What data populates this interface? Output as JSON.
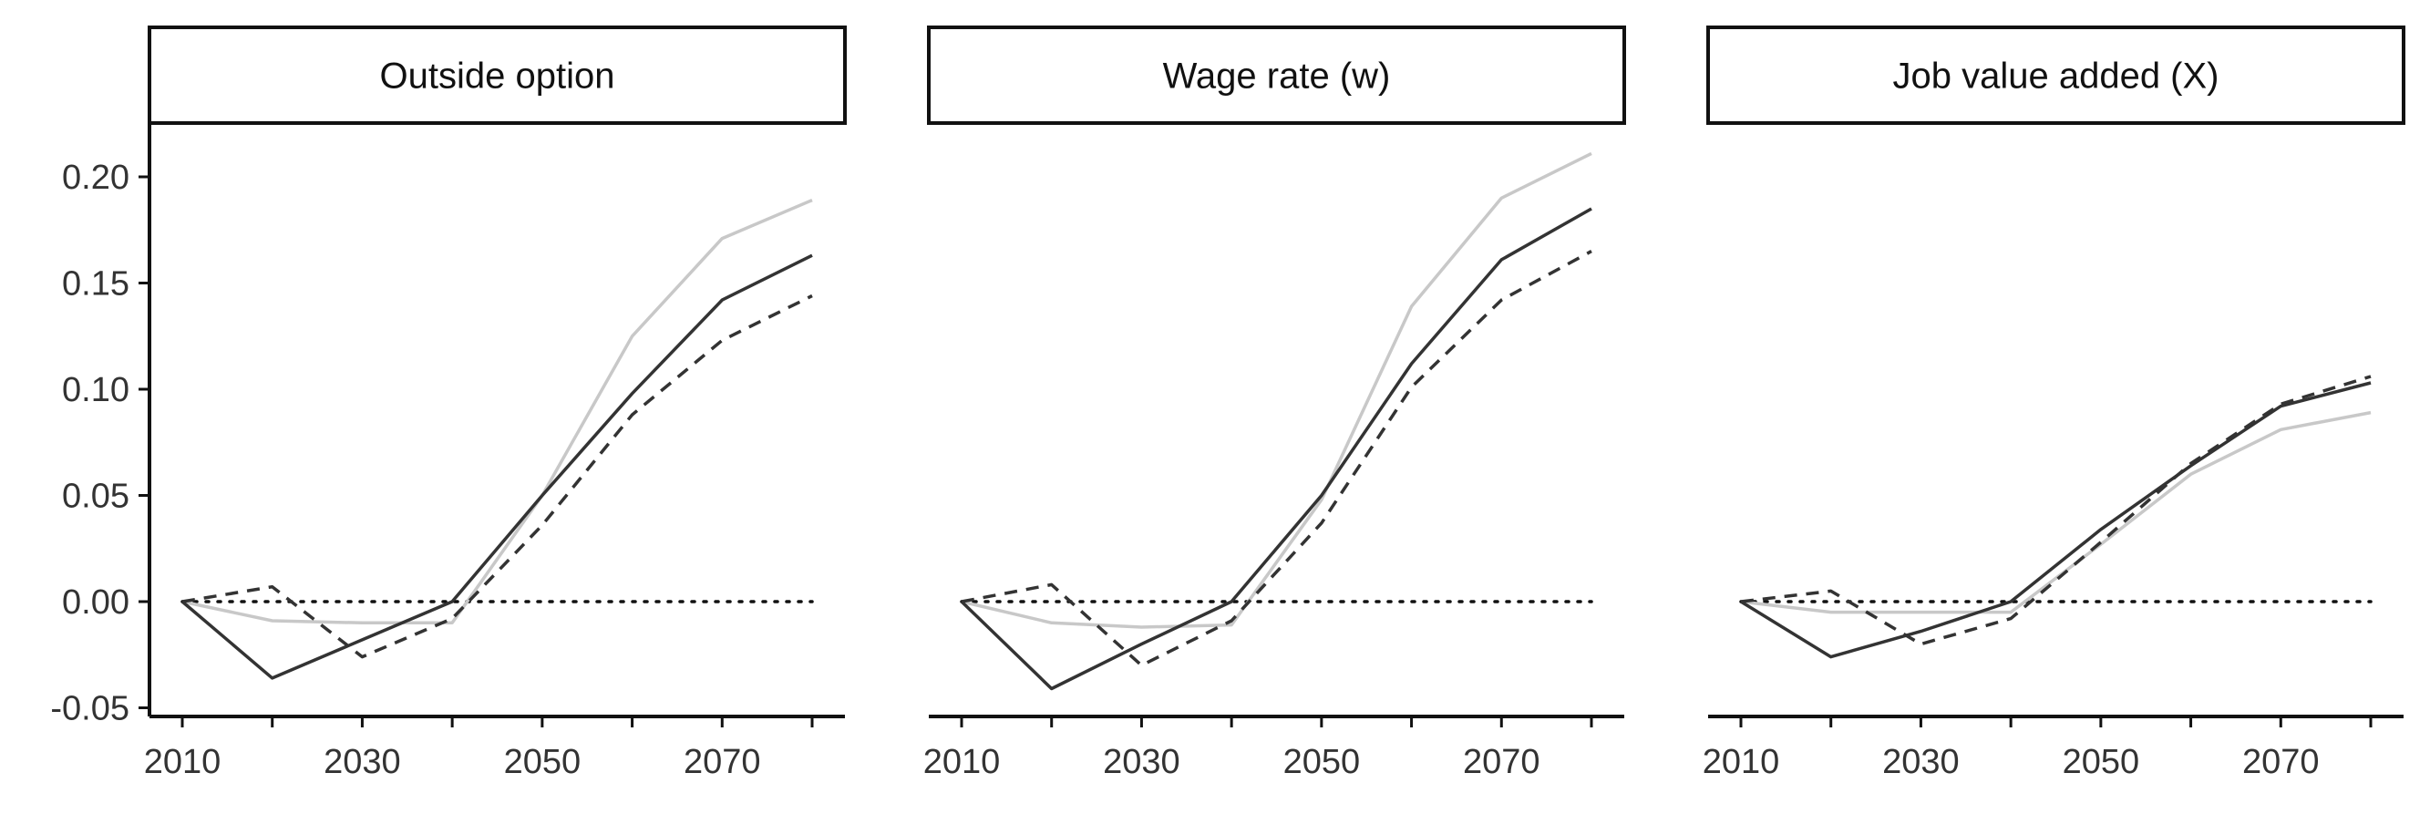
{
  "chart_data": [
    {
      "type": "line",
      "title": "Outside option",
      "x": [
        2010,
        2020,
        2030,
        2040,
        2050,
        2060,
        2070,
        2080
      ],
      "xticks": [
        "2010",
        "2030",
        "2050",
        "2070"
      ],
      "yticks": [
        "0.20",
        "0.15",
        "0.10",
        "0.05",
        "0.00",
        "-0.05"
      ],
      "xlim": [
        2010,
        2080
      ],
      "ylim": [
        -0.054,
        0.225
      ],
      "reference_line_y": 0,
      "series": [
        {
          "style": "solid-light-gray",
          "color": "#c8c8c8",
          "values": [
            0.0,
            -0.009,
            -0.01,
            -0.01,
            0.05,
            0.125,
            0.171,
            0.189
          ]
        },
        {
          "style": "solid-dark",
          "color": "#333333",
          "values": [
            0.0,
            -0.036,
            -0.018,
            0.0,
            0.05,
            0.098,
            0.142,
            0.163
          ]
        },
        {
          "style": "dashed-dark",
          "color": "#333333",
          "values": [
            0.0,
            0.007,
            -0.026,
            -0.008,
            0.036,
            0.088,
            0.123,
            0.144
          ]
        }
      ]
    },
    {
      "type": "line",
      "title": "Wage rate (w)",
      "x": [
        2010,
        2020,
        2030,
        2040,
        2050,
        2060,
        2070,
        2080
      ],
      "xticks": [
        "2010",
        "2030",
        "2050",
        "2070"
      ],
      "xlim": [
        2010,
        2080
      ],
      "ylim": [
        -0.054,
        0.225
      ],
      "reference_line_y": 0,
      "series": [
        {
          "style": "solid-light-gray",
          "color": "#c8c8c8",
          "values": [
            0.0,
            -0.01,
            -0.012,
            -0.011,
            0.048,
            0.139,
            0.19,
            0.211
          ]
        },
        {
          "style": "solid-dark",
          "color": "#333333",
          "values": [
            0.0,
            -0.041,
            -0.02,
            0.0,
            0.05,
            0.112,
            0.161,
            0.185
          ]
        },
        {
          "style": "dashed-dark",
          "color": "#333333",
          "values": [
            0.0,
            0.008,
            -0.03,
            -0.009,
            0.037,
            0.101,
            0.142,
            0.165
          ]
        }
      ]
    },
    {
      "type": "line",
      "title": "Job value added (X)",
      "x": [
        2010,
        2020,
        2030,
        2040,
        2050,
        2060,
        2070,
        2080
      ],
      "xticks": [
        "2010",
        "2030",
        "2050",
        "2070"
      ],
      "xlim": [
        2010,
        2080
      ],
      "ylim": [
        -0.054,
        0.225
      ],
      "reference_line_y": 0,
      "series": [
        {
          "style": "solid-light-gray",
          "color": "#c8c8c8",
          "values": [
            0.0,
            -0.005,
            -0.005,
            -0.005,
            0.027,
            0.06,
            0.081,
            0.089
          ]
        },
        {
          "style": "solid-dark",
          "color": "#333333",
          "values": [
            0.0,
            -0.026,
            -0.014,
            0.0,
            0.034,
            0.064,
            0.092,
            0.103
          ]
        },
        {
          "style": "dashed-dark",
          "color": "#333333",
          "values": [
            0.0,
            0.005,
            -0.02,
            -0.008,
            0.028,
            0.065,
            0.093,
            0.106
          ]
        }
      ]
    }
  ]
}
